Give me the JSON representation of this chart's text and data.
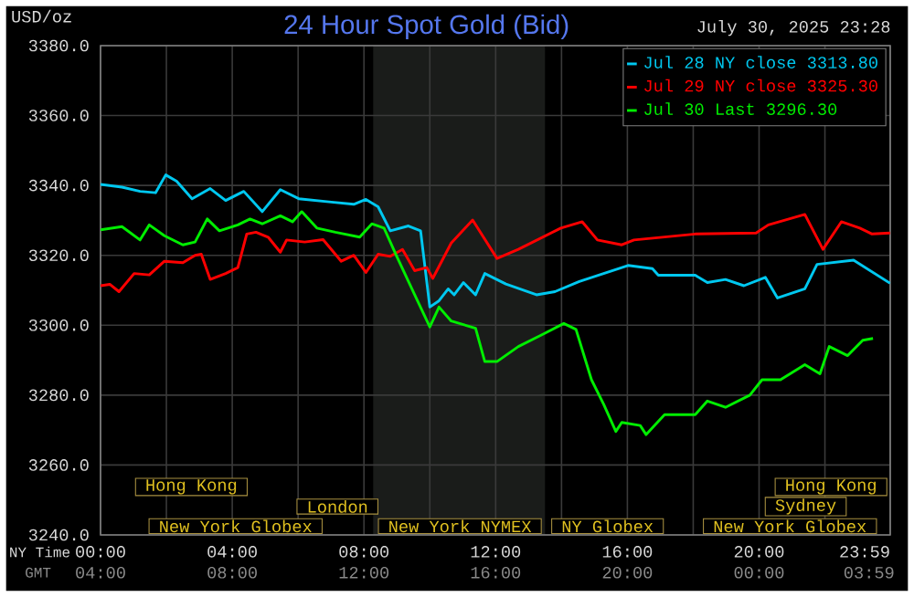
{
  "chart_data": {
    "type": "line",
    "title": "24 Hour Spot Gold (Bid)",
    "subtitle": "July 30, 2025 23:28",
    "ylabel": "USD/oz",
    "xlabel": "NY Time",
    "xlim": [
      0,
      23.9833
    ],
    "ylim": [
      3240,
      3380
    ],
    "xticks": [
      {
        "value": 0,
        "label": "00:00"
      },
      {
        "value": 2,
        "label": null
      },
      {
        "value": 4,
        "label": "04:00"
      },
      {
        "value": 6,
        "label": null
      },
      {
        "value": 8,
        "label": "08:00"
      },
      {
        "value": 10,
        "label": null
      },
      {
        "value": 12,
        "label": "12:00"
      },
      {
        "value": 14,
        "label": null
      },
      {
        "value": 16,
        "label": "16:00"
      },
      {
        "value": 18,
        "label": null
      },
      {
        "value": 20,
        "label": "20:00"
      },
      {
        "value": 22,
        "label": null
      },
      {
        "value": 23.9833,
        "label": "23:59"
      }
    ],
    "yticks": [
      {
        "value": 3240,
        "label": "3240.0"
      },
      {
        "value": 3260,
        "label": "3260.0"
      },
      {
        "value": 3280,
        "label": "3280.0"
      },
      {
        "value": 3300,
        "label": "3300.0"
      },
      {
        "value": 3320,
        "label": "3320.0"
      },
      {
        "value": 3340,
        "label": "3340.0"
      },
      {
        "value": 3360,
        "label": "3360.0"
      },
      {
        "value": 3380,
        "label": "3380.0"
      }
    ],
    "grid": true,
    "legend": "top right",
    "marker": "none",
    "line_style": "solid",
    "bands": [
      {
        "axis": "x",
        "from": 8.28,
        "to": 13.5,
        "color": "#1a1c1a"
      }
    ],
    "annotations": [
      "Hong Kong",
      "Hong Kong",
      "London",
      "Sydney",
      "New York Globex",
      "New York NYMEX",
      "NY Globex",
      "New York Globex",
      "GMT",
      "04:00",
      "08:00",
      "12:00",
      "16:00",
      "20:00",
      "00:00",
      "03:59"
    ],
    "series": [
      {
        "name": "Jul 28 NY close 3313.80",
        "color": "#00c8f0",
        "x": [
          0,
          0.65,
          1.2,
          1.67,
          1.98,
          2.31,
          2.78,
          3.33,
          3.8,
          4.35,
          4.91,
          5.46,
          6.02,
          6.94,
          7.69,
          8.06,
          8.43,
          8.8,
          9.35,
          9.72,
          10.0,
          10.28,
          10.56,
          10.74,
          11.02,
          11.39,
          11.67,
          12.31,
          13.24,
          13.8,
          14.54,
          15.28,
          16.02,
          16.76,
          16.94,
          18.06,
          18.43,
          18.98,
          19.54,
          20.19,
          20.56,
          21.39,
          21.76,
          22.87,
          23.98
        ],
        "values": [
          3340.3,
          3339.5,
          3338.3,
          3337.9,
          3343.0,
          3341.2,
          3336.2,
          3339.1,
          3335.7,
          3338.3,
          3332.5,
          3338.8,
          3336.2,
          3335.3,
          3334.6,
          3336.0,
          3333.9,
          3327.0,
          3328.4,
          3327.0,
          3305.2,
          3307.0,
          3310.4,
          3308.7,
          3312.2,
          3308.7,
          3314.8,
          3311.8,
          3308.7,
          3309.6,
          3312.5,
          3314.8,
          3317.1,
          3316.2,
          3314.3,
          3314.3,
          3312.2,
          3313.1,
          3311.3,
          3313.7,
          3307.8,
          3310.4,
          3317.4,
          3318.6,
          3312.0
        ]
      },
      {
        "name": "Jul 29 NY close 3325.30",
        "color": "#ff0000",
        "x": [
          0,
          0.28,
          0.56,
          1.02,
          1.48,
          1.94,
          2.5,
          2.87,
          3.06,
          3.33,
          3.8,
          4.17,
          4.44,
          4.72,
          5.09,
          5.46,
          5.65,
          6.2,
          6.76,
          7.31,
          7.69,
          8.06,
          8.43,
          8.8,
          9.17,
          9.54,
          9.91,
          10.09,
          10.65,
          11.3,
          12.04,
          12.69,
          13.98,
          14.63,
          15.09,
          15.83,
          16.2,
          18.06,
          19.91,
          20.28,
          21.39,
          21.94,
          22.5,
          23.06,
          23.43,
          23.98
        ],
        "values": [
          3311.3,
          3311.7,
          3309.6,
          3314.8,
          3314.4,
          3318.3,
          3317.9,
          3320.0,
          3320.3,
          3313.1,
          3314.8,
          3316.5,
          3326.1,
          3326.6,
          3325.2,
          3320.9,
          3324.4,
          3323.8,
          3324.5,
          3318.3,
          3320.0,
          3315.1,
          3320.3,
          3319.7,
          3321.7,
          3315.6,
          3316.5,
          3313.4,
          3323.5,
          3330.1,
          3319.1,
          3321.7,
          3327.8,
          3329.6,
          3324.4,
          3323.0,
          3324.4,
          3326.1,
          3326.4,
          3328.7,
          3331.7,
          3321.7,
          3329.6,
          3327.8,
          3326.1,
          3326.4
        ]
      },
      {
        "name": "Jul 30 Last 3296.30",
        "color": "#00ee00",
        "x": [
          0,
          0.65,
          1.2,
          1.48,
          1.94,
          2.5,
          2.87,
          3.24,
          3.61,
          4.17,
          4.54,
          4.91,
          5.46,
          5.83,
          6.11,
          6.57,
          7.13,
          7.87,
          8.24,
          8.61,
          8.98,
          9.54,
          10.0,
          10.28,
          10.65,
          11.39,
          11.67,
          12.04,
          12.69,
          13.43,
          14.07,
          14.44,
          14.91,
          15.28,
          15.65,
          15.83,
          16.39,
          16.57,
          17.13,
          18.06,
          18.43,
          18.98,
          19.72,
          20.09,
          20.65,
          21.39,
          21.85,
          22.13,
          22.69,
          23.15,
          23.46
        ],
        "values": [
          3327.3,
          3328.2,
          3324.4,
          3328.7,
          3325.6,
          3323.0,
          3323.8,
          3330.4,
          3327.0,
          3328.7,
          3330.4,
          3329.0,
          3331.3,
          3329.6,
          3332.5,
          3327.8,
          3326.6,
          3325.2,
          3329.0,
          3327.8,
          3320.0,
          3308.7,
          3299.5,
          3305.2,
          3301.2,
          3299.1,
          3289.6,
          3289.6,
          3293.9,
          3297.4,
          3300.5,
          3298.8,
          3284.4,
          3277.4,
          3269.6,
          3272.2,
          3271.3,
          3268.7,
          3274.4,
          3274.4,
          3278.3,
          3276.5,
          3280.0,
          3284.4,
          3284.4,
          3288.7,
          3286.1,
          3293.9,
          3291.3,
          3295.7,
          3296.2
        ]
      }
    ]
  }
}
